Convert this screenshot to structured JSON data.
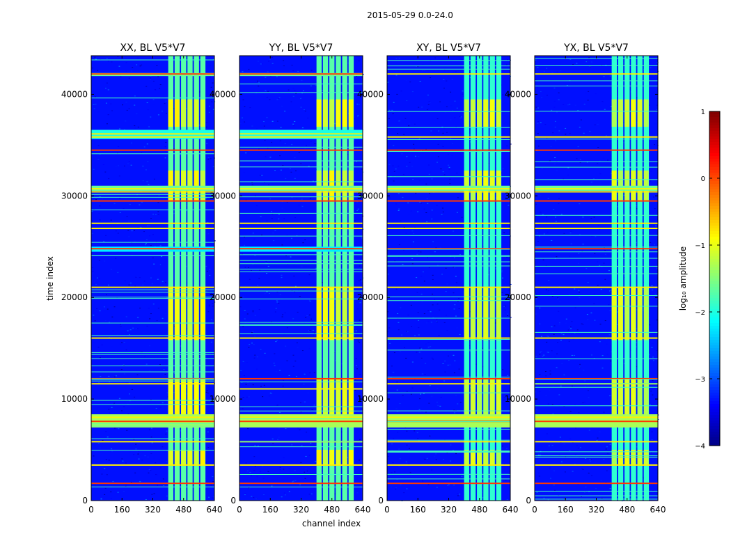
{
  "figure": {
    "suptitle": "2015-05-29 0.0-24.0",
    "xlabel": "channel index",
    "ylabel": "time index",
    "colorbar_label": "log$_{10}$ amplitude",
    "colorbar_label_display": "log₁₀ amplitude"
  },
  "colors": {
    "background": "#0000ff",
    "colormap": "jet"
  },
  "chart_data": [
    {
      "type": "heatmap",
      "title": "XX, BL V5*V7",
      "xlabel": "channel index",
      "ylabel": "time index",
      "xlim": [
        0,
        640
      ],
      "ylim": [
        0,
        43800
      ],
      "xticks": [
        0,
        160,
        320,
        480,
        640
      ],
      "yticks": [
        0,
        10000,
        20000,
        30000,
        40000
      ],
      "background_log10": -3.3,
      "band_channels": [
        400,
        600
      ],
      "band_log10_high_time": -1.0,
      "band_log10_mid_time": -1.7,
      "rfi_time_rows": [
        1700,
        3500,
        5800,
        7800,
        8200,
        11500,
        12000,
        16000,
        21000,
        24800,
        26800,
        27300,
        29500,
        30400,
        30700,
        34500,
        35800,
        36100,
        42000
      ],
      "broad_time_bands": [
        [
          7200,
          8500,
          -1.3
        ],
        [
          35600,
          36500,
          -2.0
        ],
        [
          30500,
          31000,
          -1.6
        ],
        [
          24500,
          25000,
          -2.2
        ],
        [
          41800,
          42100,
          -1.6
        ]
      ]
    },
    {
      "type": "heatmap",
      "title": "YY, BL V5*V7",
      "xlabel": "channel index",
      "ylabel": "time index",
      "xlim": [
        0,
        640
      ],
      "ylim": [
        0,
        43800
      ],
      "xticks": [
        0,
        160,
        320,
        480,
        640
      ],
      "yticks": [
        0,
        10000,
        20000,
        30000,
        40000
      ],
      "background_log10": -3.3,
      "band_channels": [
        400,
        600
      ],
      "band_log10_high_time": -1.0,
      "band_log10_mid_time": -1.7,
      "rfi_time_rows": [
        1700,
        3500,
        5800,
        7800,
        8200,
        11000,
        12000,
        16000,
        21000,
        24800,
        26800,
        27300,
        29500,
        30400,
        30700,
        34500,
        35800,
        36100,
        42000
      ],
      "broad_time_bands": [
        [
          7200,
          8500,
          -1.3
        ],
        [
          35600,
          36500,
          -2.0
        ],
        [
          30500,
          31000,
          -1.6
        ],
        [
          24500,
          25000,
          -2.2
        ],
        [
          41800,
          42100,
          -1.6
        ]
      ]
    },
    {
      "type": "heatmap",
      "title": "XY, BL V5*V7",
      "xlabel": "channel index",
      "ylabel": "time index",
      "xlim": [
        0,
        640
      ],
      "ylim": [
        0,
        43800
      ],
      "xticks": [
        0,
        160,
        320,
        480,
        640
      ],
      "yticks": [
        0,
        10000,
        20000,
        30000,
        40000
      ],
      "background_log10": -3.3,
      "band_channels": [
        400,
        600
      ],
      "band_log10_high_time": -1.1,
      "band_log10_mid_time": -1.9,
      "rfi_time_rows": [
        1700,
        3500,
        5800,
        7800,
        8200,
        11500,
        12000,
        16000,
        21000,
        24800,
        26800,
        27300,
        29500,
        30400,
        30700,
        34500,
        35800,
        42000
      ],
      "broad_time_bands": [
        [
          7200,
          8500,
          -1.3
        ],
        [
          30500,
          31000,
          -1.6
        ]
      ]
    },
    {
      "type": "heatmap",
      "title": "YX, BL V5*V7",
      "xlabel": "channel index",
      "ylabel": "time index",
      "xlim": [
        0,
        640
      ],
      "ylim": [
        0,
        43800
      ],
      "xticks": [
        0,
        160,
        320,
        480,
        640
      ],
      "yticks": [
        0,
        10000,
        20000,
        30000,
        40000
      ],
      "background_log10": -3.3,
      "band_channels": [
        400,
        600
      ],
      "band_log10_high_time": -1.1,
      "band_log10_mid_time": -1.9,
      "rfi_time_rows": [
        1700,
        3500,
        5800,
        7800,
        8200,
        11500,
        12000,
        16000,
        21000,
        24800,
        26800,
        27300,
        29500,
        30400,
        30700,
        34500,
        35800,
        42000
      ],
      "broad_time_bands": [
        [
          7200,
          8500,
          -1.3
        ],
        [
          30500,
          31000,
          -1.6
        ]
      ]
    }
  ],
  "colorbar": {
    "range": [
      -4,
      1
    ],
    "ticks": [
      1,
      0,
      -1,
      -2,
      -3,
      -4
    ],
    "tick_labels": [
      "1",
      "0",
      "−1",
      "−2",
      "−3",
      "−4"
    ]
  }
}
